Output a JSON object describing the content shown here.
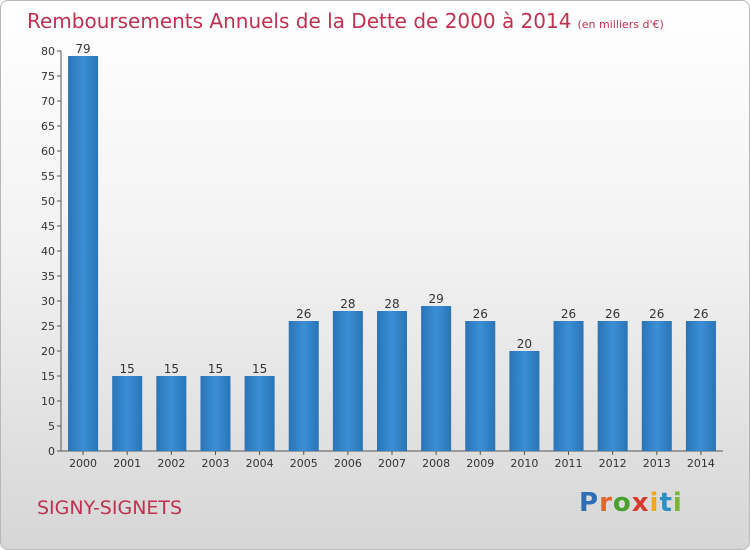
{
  "header": {
    "title": "Remboursements Annuels de la Dette de 2000 à 2014",
    "unit": "(en milliers d'€)"
  },
  "footer": {
    "commune": "SIGNY-SIGNETS",
    "brand": "Proxiti"
  },
  "colors": {
    "bar": "#3b8fd6",
    "bar_dark": "#2a74b6",
    "title": "#c0304f"
  },
  "chart_data": {
    "type": "bar",
    "categories": [
      "2000",
      "2001",
      "2002",
      "2003",
      "2004",
      "2005",
      "2006",
      "2007",
      "2008",
      "2009",
      "2010",
      "2011",
      "2012",
      "2013",
      "2014"
    ],
    "values": [
      79,
      15,
      15,
      15,
      15,
      26,
      28,
      28,
      29,
      26,
      20,
      26,
      26,
      26,
      26
    ],
    "title": "Remboursements Annuels de la Dette de 2000 à 2014",
    "xlabel": "",
    "ylabel": "",
    "ylim": [
      0,
      80
    ],
    "ytick_step": 5,
    "grid": false,
    "legend": "none"
  }
}
